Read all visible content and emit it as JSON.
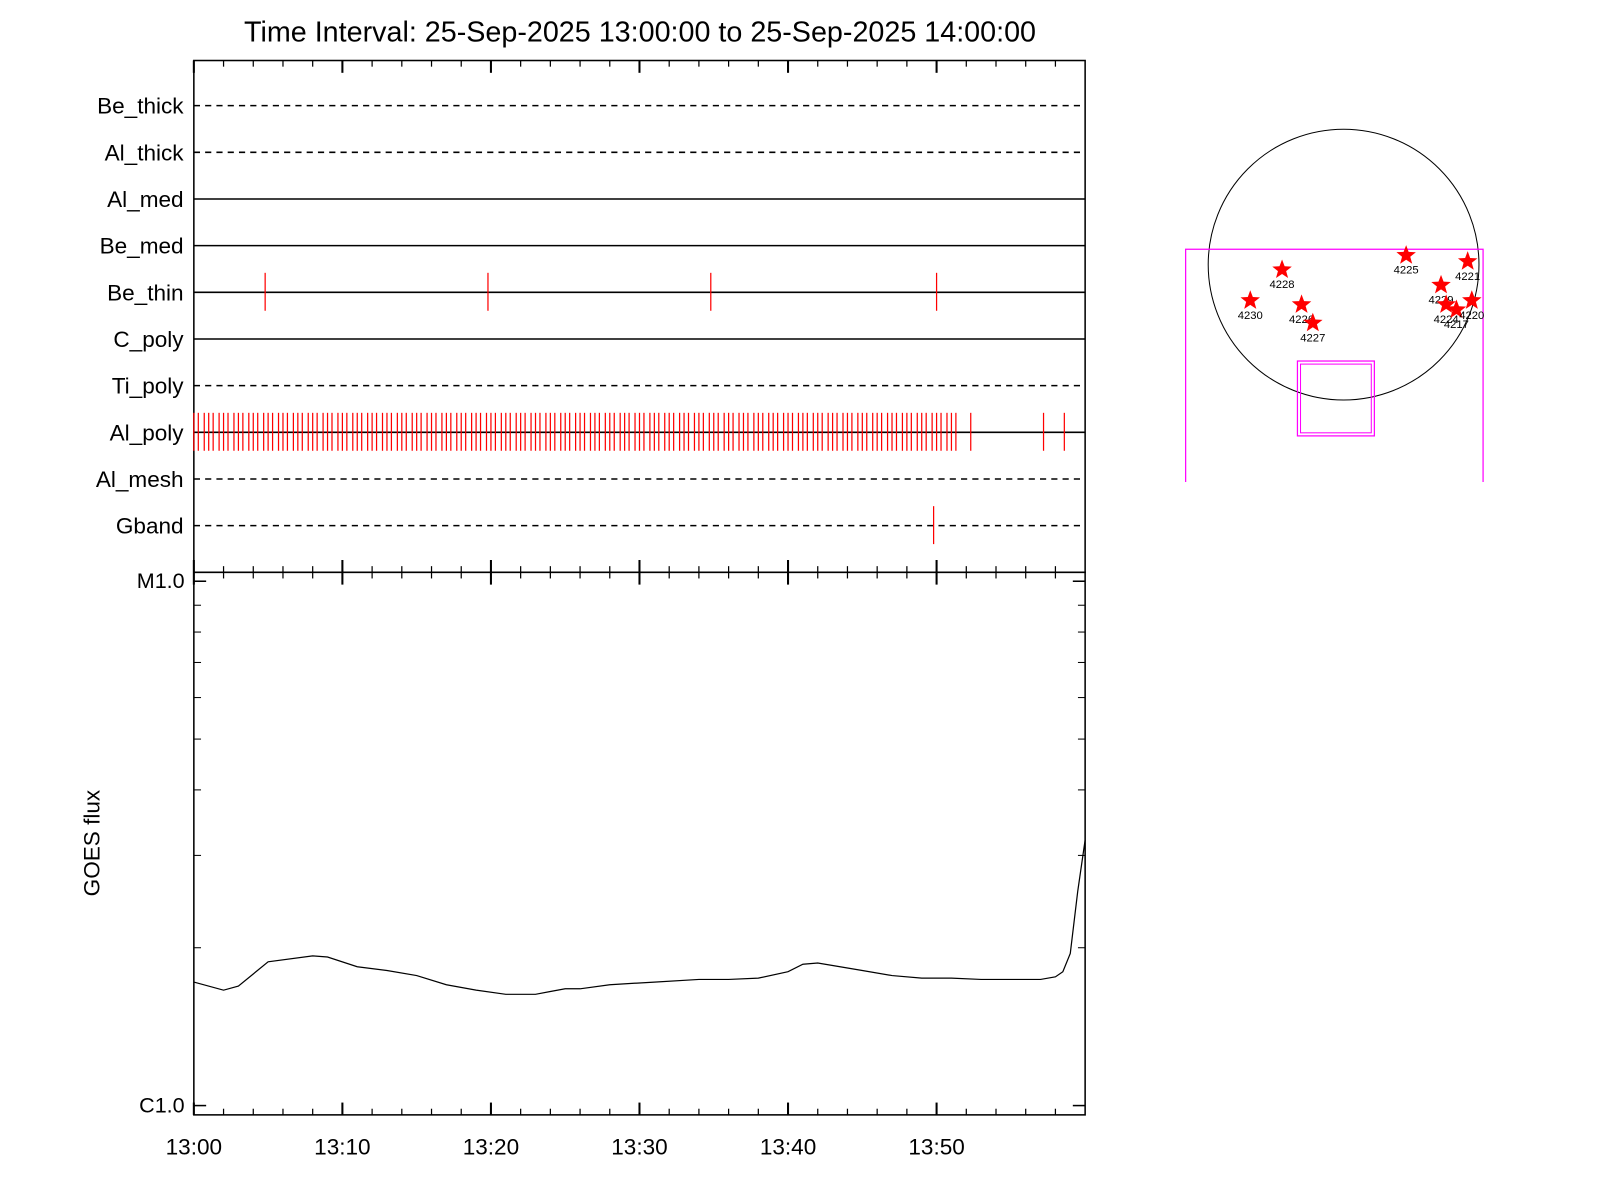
{
  "chart_data": [
    {
      "type": "events",
      "title": "Time Interval: 25-Sep-2025 13:00:00 to 25-Sep-2025 14:00:00",
      "xlim": [
        0,
        60
      ],
      "event_color": "#ff0000",
      "rows": [
        {
          "name": "Be_thick",
          "style": "dashed",
          "events": []
        },
        {
          "name": "Al_thick",
          "style": "dashed",
          "events": []
        },
        {
          "name": "Al_med",
          "style": "solid",
          "events": []
        },
        {
          "name": "Be_med",
          "style": "solid",
          "events": []
        },
        {
          "name": "Be_thin",
          "style": "solid",
          "events": [
            4.8,
            19.8,
            34.8,
            50
          ]
        },
        {
          "name": "C_poly",
          "style": "solid",
          "events": []
        },
        {
          "name": "Ti_poly",
          "style": "dashed",
          "events": []
        },
        {
          "name": "Al_poly",
          "style": "solid",
          "events": [
            0,
            0.3,
            0.7,
            1,
            1.3,
            1.7,
            2,
            2.3,
            2.7,
            3,
            3.3,
            3.7,
            4,
            4.3,
            4.7,
            5,
            5.3,
            5.7,
            6,
            6.3,
            6.7,
            7,
            7.3,
            7.7,
            8,
            8.3,
            8.7,
            9,
            9.3,
            9.7,
            10,
            10.3,
            10.7,
            11,
            11.3,
            11.7,
            12,
            12.3,
            12.7,
            13,
            13.3,
            13.7,
            14,
            14.3,
            14.7,
            15,
            15.3,
            15.7,
            16,
            16.3,
            16.7,
            17,
            17.3,
            17.7,
            18,
            18.3,
            18.7,
            19,
            19.3,
            19.7,
            20,
            20.3,
            20.7,
            21,
            21.3,
            21.7,
            22,
            22.3,
            22.7,
            23,
            23.3,
            23.7,
            24,
            24.3,
            24.7,
            25,
            25.3,
            25.7,
            26,
            26.3,
            26.7,
            27,
            27.3,
            27.7,
            28,
            28.3,
            28.7,
            29,
            29.3,
            29.7,
            30,
            30.3,
            30.7,
            31,
            31.3,
            31.7,
            32,
            32.3,
            32.7,
            33,
            33.3,
            33.7,
            34,
            34.3,
            34.7,
            35,
            35.3,
            35.7,
            36,
            36.3,
            36.7,
            37,
            37.3,
            37.7,
            38,
            38.3,
            38.7,
            39,
            39.3,
            39.7,
            40,
            40.3,
            40.7,
            41,
            41.3,
            41.7,
            42,
            42.3,
            42.7,
            43,
            43.3,
            43.7,
            44,
            44.3,
            44.7,
            45,
            45.3,
            45.7,
            46,
            46.3,
            46.7,
            47,
            47.3,
            47.7,
            48,
            48.3,
            48.7,
            49,
            49.3,
            49.7,
            50,
            50.3,
            50.7,
            51,
            51.3,
            52.3,
            57.2,
            58.6
          ]
        },
        {
          "name": "Al_mesh",
          "style": "dashed",
          "events": []
        },
        {
          "name": "Gband",
          "style": "dashed",
          "events": [
            49.8
          ]
        }
      ]
    },
    {
      "type": "line",
      "ylabel": "GOES flux",
      "log_scale": true,
      "color": "#000000",
      "xlim": [
        0,
        60
      ],
      "xticks": [
        {
          "value": 0,
          "label": "13:00"
        },
        {
          "value": 10,
          "label": "13:10"
        },
        {
          "value": 20,
          "label": "13:20"
        },
        {
          "value": 30,
          "label": "13:30"
        },
        {
          "value": 40,
          "label": "13:40"
        },
        {
          "value": 50,
          "label": "13:50"
        }
      ],
      "xminor_ticks": [
        2,
        4,
        6,
        8,
        12,
        14,
        16,
        18,
        22,
        24,
        26,
        28,
        32,
        34,
        36,
        38,
        42,
        44,
        46,
        48,
        52,
        54,
        56,
        58
      ],
      "ylim": [
        9.6e-07,
        1.04e-05
      ],
      "yticks": [
        {
          "value": 1e-06,
          "label": "C1.0"
        },
        {
          "value": 1e-05,
          "label": "M1.0"
        }
      ],
      "yminor_ticks": [
        2e-06,
        3e-06,
        4e-06,
        5e-06,
        6e-06,
        7e-06,
        8e-06,
        9e-06
      ],
      "x": [
        0,
        2,
        3,
        5,
        8,
        9,
        11,
        13,
        15,
        17,
        19,
        21,
        23,
        24,
        25,
        26,
        28,
        31,
        34,
        36,
        38,
        40,
        41,
        42,
        43,
        45,
        47,
        49,
        51,
        53,
        57,
        58,
        58.5,
        59,
        59.5,
        60
      ],
      "values": [
        1.72e-06,
        1.66e-06,
        1.69e-06,
        1.88e-06,
        1.93e-06,
        1.92e-06,
        1.84e-06,
        1.81e-06,
        1.77e-06,
        1.7e-06,
        1.66e-06,
        1.63e-06,
        1.63e-06,
        1.65e-06,
        1.67e-06,
        1.67e-06,
        1.7e-06,
        1.72e-06,
        1.74e-06,
        1.74e-06,
        1.75e-06,
        1.8e-06,
        1.86e-06,
        1.87e-06,
        1.85e-06,
        1.81e-06,
        1.77e-06,
        1.75e-06,
        1.75e-06,
        1.74e-06,
        1.74e-06,
        1.76e-06,
        1.8e-06,
        1.95e-06,
        2.56e-06,
        3.21e-06
      ]
    },
    {
      "type": "sunmap",
      "color": "#ff0000",
      "regions": [
        {
          "label": "4228",
          "x": -432,
          "y": -36
        },
        {
          "label": "4225",
          "x": 439,
          "y": 65
        },
        {
          "label": "4221",
          "x": 871,
          "y": 22
        },
        {
          "label": "4230",
          "x": -655,
          "y": -252
        },
        {
          "label": "4226",
          "x": -295,
          "y": -281
        },
        {
          "label": "4227",
          "x": -216,
          "y": -410
        },
        {
          "label": "4229",
          "x": 684,
          "y": -144
        },
        {
          "label": "4224",
          "x": 720,
          "y": -281
        },
        {
          "label": "4217",
          "x": 792,
          "y": -317
        },
        {
          "label": "4220",
          "x": 900,
          "y": -252
        }
      ]
    }
  ]
}
